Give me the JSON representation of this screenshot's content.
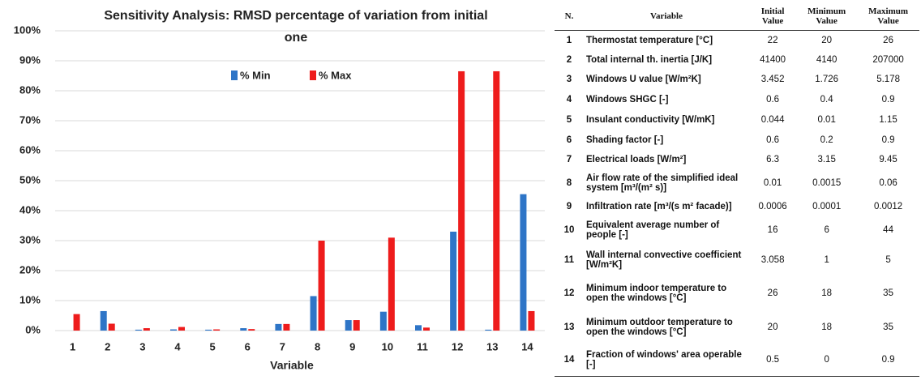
{
  "chart_data": {
    "type": "bar",
    "title": "Sensitivity Analysis: RMSD percentage of variation from initial one",
    "x_label": "Variable",
    "categories": [
      "1",
      "2",
      "3",
      "4",
      "5",
      "6",
      "7",
      "8",
      "9",
      "10",
      "11",
      "12",
      "13",
      "14"
    ],
    "series": [
      {
        "name": "% Min",
        "color": "#2e75c7",
        "values": [
          0,
          6.5,
          0.3,
          0.4,
          0.3,
          0.8,
          2.2,
          11.5,
          3.5,
          6.3,
          1.8,
          33,
          0.3,
          45.5
        ]
      },
      {
        "name": "% Max",
        "color": "#ee1c1c",
        "values": [
          5.5,
          2.3,
          0.8,
          1.2,
          0.4,
          0.5,
          2.2,
          30,
          3.5,
          31,
          1,
          86.5,
          86.5,
          6.5
        ]
      }
    ],
    "ylim": [
      0,
      100
    ],
    "yticks": [
      {
        "value": 0,
        "label": "0%"
      },
      {
        "value": 10,
        "label": "10%"
      },
      {
        "value": 20,
        "label": "20%"
      },
      {
        "value": 30,
        "label": "30%"
      },
      {
        "value": 40,
        "label": "40%"
      },
      {
        "value": 50,
        "label": "50%"
      },
      {
        "value": 60,
        "label": "60%"
      },
      {
        "value": 70,
        "label": "70%"
      },
      {
        "value": 80,
        "label": "80%"
      },
      {
        "value": 90,
        "label": "90%"
      },
      {
        "value": 100,
        "label": "100%"
      }
    ],
    "grid": true,
    "legend": "top"
  },
  "table": {
    "header": [
      "N.",
      "Variable",
      "Initial Value",
      "Minimum Value",
      "Maximum Value"
    ],
    "rows": [
      [
        "1",
        "Thermostat temperature [°C]",
        "22",
        "20",
        "26"
      ],
      [
        "2",
        "Total internal th. inertia [J/K]",
        "41400",
        "4140",
        "207000"
      ],
      [
        "3",
        "Windows U value [W/m²K]",
        "3.452",
        "1.726",
        "5.178"
      ],
      [
        "4",
        "Windows SHGC [-]",
        "0.6",
        "0.4",
        "0.9"
      ],
      [
        "5",
        "Insulant conductivity [W/mK]",
        "0.044",
        "0.01",
        "1.15"
      ],
      [
        "6",
        "Shading factor [-]",
        "0.6",
        "0.2",
        "0.9"
      ],
      [
        "7",
        "Electrical loads [W/m²]",
        "6.3",
        "3.15",
        "9.45"
      ],
      [
        "8",
        "Air flow rate of the simplified ideal system [m³/(m² s)]",
        "0.01",
        "0.0015",
        "0.06"
      ],
      [
        "9",
        "Infiltration rate [m³/(s m² facade)]",
        "0.0006",
        "0.0001",
        "0.0012"
      ],
      [
        "10",
        "Equivalent average number of people [-]",
        "16",
        "6",
        "44"
      ],
      [
        "11",
        "Wall internal convective coefficient [W/m²K]",
        "3.058",
        "1",
        "5"
      ],
      [
        "12",
        "Minimum indoor temperature to open the windows [°C]",
        "26",
        "18",
        "35"
      ],
      [
        "13",
        "Minimum outdoor temperature to open the windows [°C]",
        "20",
        "18",
        "35"
      ],
      [
        "14",
        "Fraction of windows' area operable [-]",
        "0.5",
        "0",
        "0.9"
      ]
    ]
  }
}
